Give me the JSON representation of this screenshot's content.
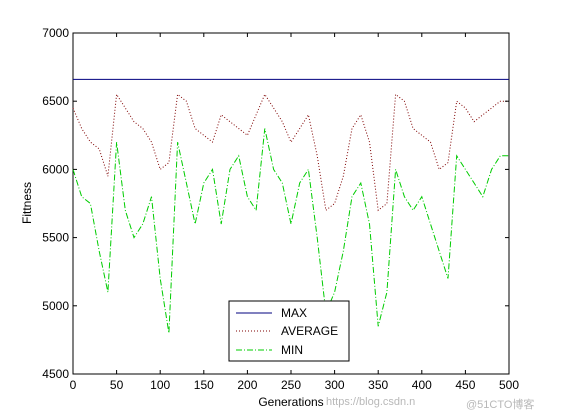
{
  "chart_data": {
    "type": "line",
    "xlabel": "Generations",
    "ylabel": "Fittness",
    "xlim": [
      0,
      500
    ],
    "ylim": [
      4500,
      7000
    ],
    "xticks": [
      "0",
      "50",
      "100",
      "150",
      "200",
      "250",
      "300",
      "350",
      "400",
      "450",
      "500"
    ],
    "yticks": [
      "4500",
      "5000",
      "5500",
      "6000",
      "6500",
      "7000"
    ],
    "grid": false,
    "legend_position": "bottom-center",
    "series": [
      {
        "name": "MAX",
        "color": "#00007f",
        "style": "solid",
        "x": [
          0,
          500
        ],
        "values": [
          6660,
          6660
        ]
      },
      {
        "name": "AVERAGE",
        "color": "#7f0000",
        "style": "dotted",
        "x": [
          0,
          10,
          20,
          30,
          40,
          50,
          60,
          70,
          80,
          90,
          100,
          110,
          120,
          130,
          140,
          150,
          160,
          170,
          180,
          190,
          200,
          210,
          220,
          230,
          240,
          250,
          260,
          270,
          280,
          290,
          300,
          310,
          320,
          330,
          340,
          350,
          360,
          370,
          380,
          390,
          400,
          410,
          420,
          430,
          440,
          450,
          460,
          470,
          480,
          490,
          500
        ],
        "values": [
          6450,
          6300,
          6200,
          6150,
          5950,
          6550,
          6450,
          6350,
          6300,
          6200,
          6000,
          6050,
          6550,
          6500,
          6300,
          6250,
          6200,
          6400,
          6350,
          6300,
          6250,
          6400,
          6550,
          6450,
          6350,
          6200,
          6300,
          6400,
          6100,
          5700,
          5750,
          5950,
          6300,
          6400,
          6200,
          5700,
          5750,
          6550,
          6500,
          6300,
          6250,
          6200,
          6000,
          6050,
          6500,
          6450,
          6350,
          6400,
          6450,
          6500,
          6500
        ]
      },
      {
        "name": "MIN",
        "color": "#00cc00",
        "style": "dashdot",
        "x": [
          0,
          10,
          20,
          30,
          40,
          50,
          60,
          70,
          80,
          90,
          100,
          110,
          120,
          130,
          140,
          150,
          160,
          170,
          180,
          190,
          200,
          210,
          220,
          230,
          240,
          250,
          260,
          270,
          280,
          290,
          300,
          310,
          320,
          330,
          340,
          350,
          360,
          370,
          380,
          390,
          400,
          410,
          420,
          430,
          440,
          450,
          460,
          470,
          480,
          490,
          500
        ],
        "values": [
          6000,
          5800,
          5750,
          5400,
          5100,
          6200,
          5700,
          5500,
          5600,
          5800,
          5200,
          4800,
          6200,
          5900,
          5600,
          5900,
          6000,
          5600,
          6000,
          6100,
          5800,
          5700,
          6300,
          6000,
          5900,
          5600,
          5900,
          6000,
          5500,
          4950,
          5100,
          5400,
          5800,
          5900,
          5600,
          4850,
          5100,
          6000,
          5800,
          5700,
          5800,
          5600,
          5400,
          5200,
          6100,
          6000,
          5900,
          5800,
          6000,
          6100,
          6100
        ]
      }
    ]
  },
  "watermark": {
    "left": "https://blog.csdn.n",
    "right": "@51CTO博客"
  }
}
